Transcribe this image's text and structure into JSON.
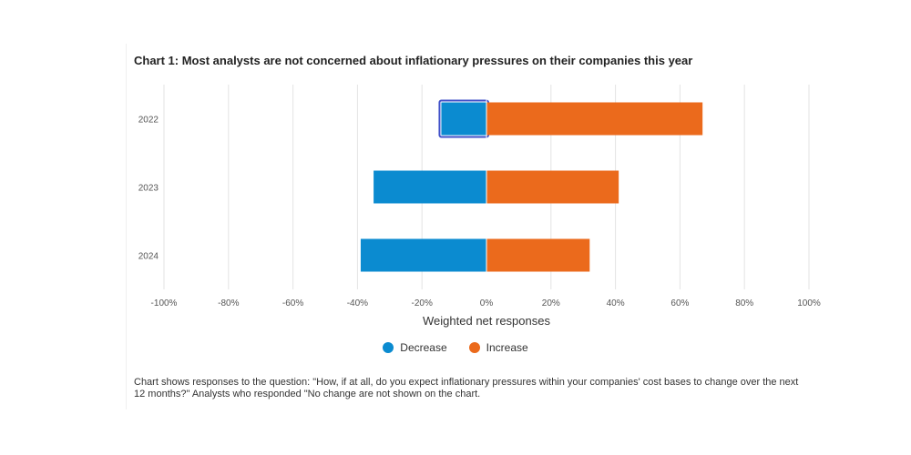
{
  "chart_data": {
    "type": "bar",
    "orientation": "horizontal",
    "stacked": "diverging",
    "title": "Chart 1: Most analysts are not concerned about inflationary pressures on their companies this year",
    "xlabel": "Weighted net responses",
    "ylabel": "",
    "xlim": [
      -100,
      100
    ],
    "categories": [
      "2022",
      "2023",
      "2024"
    ],
    "x_ticks": [
      "-100%",
      "-80%",
      "-60%",
      "-40%",
      "-20%",
      "0%",
      "20%",
      "40%",
      "60%",
      "80%",
      "100%"
    ],
    "series": [
      {
        "name": "Decrease",
        "color": "#0b8bd0",
        "values": [
          -14,
          -35,
          -39
        ]
      },
      {
        "name": "Increase",
        "color": "#eb6a1c",
        "values": [
          67,
          41,
          32
        ]
      }
    ],
    "grid": true,
    "legend_position": "bottom",
    "highlighted": {
      "series": "Decrease",
      "category": "2022"
    }
  },
  "note": "Chart shows responses to the question: \"How, if at all, do you expect inflationary pressures within your companies' cost bases to change over the next 12 months?\" Analysts who responded \"No change are not shown on the chart."
}
